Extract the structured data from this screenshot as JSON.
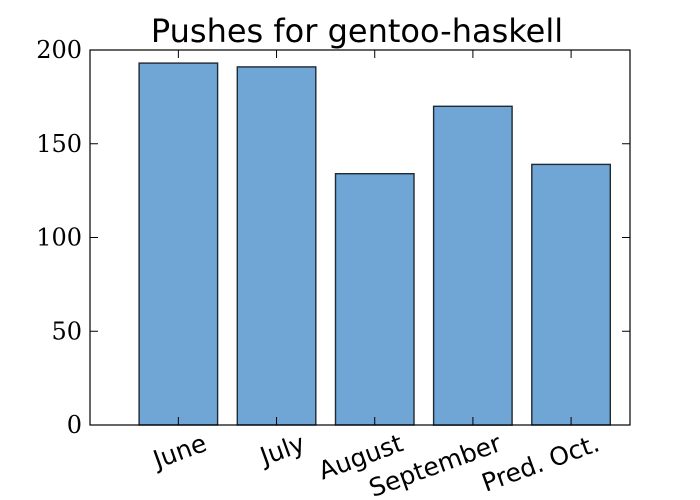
{
  "chart_data": {
    "type": "bar",
    "title": "Pushes for gentoo-haskell",
    "categories": [
      "June",
      "July",
      "August",
      "September",
      "Pred. Oct."
    ],
    "values": [
      193,
      191,
      134,
      170,
      139
    ],
    "ylim": [
      0,
      200
    ],
    "yticks": [
      0,
      50,
      100,
      150,
      200
    ],
    "xlabel": "",
    "ylabel": "",
    "grid": false,
    "bar_color": "#6fa6d6",
    "edge_color": "#1f2a33"
  }
}
